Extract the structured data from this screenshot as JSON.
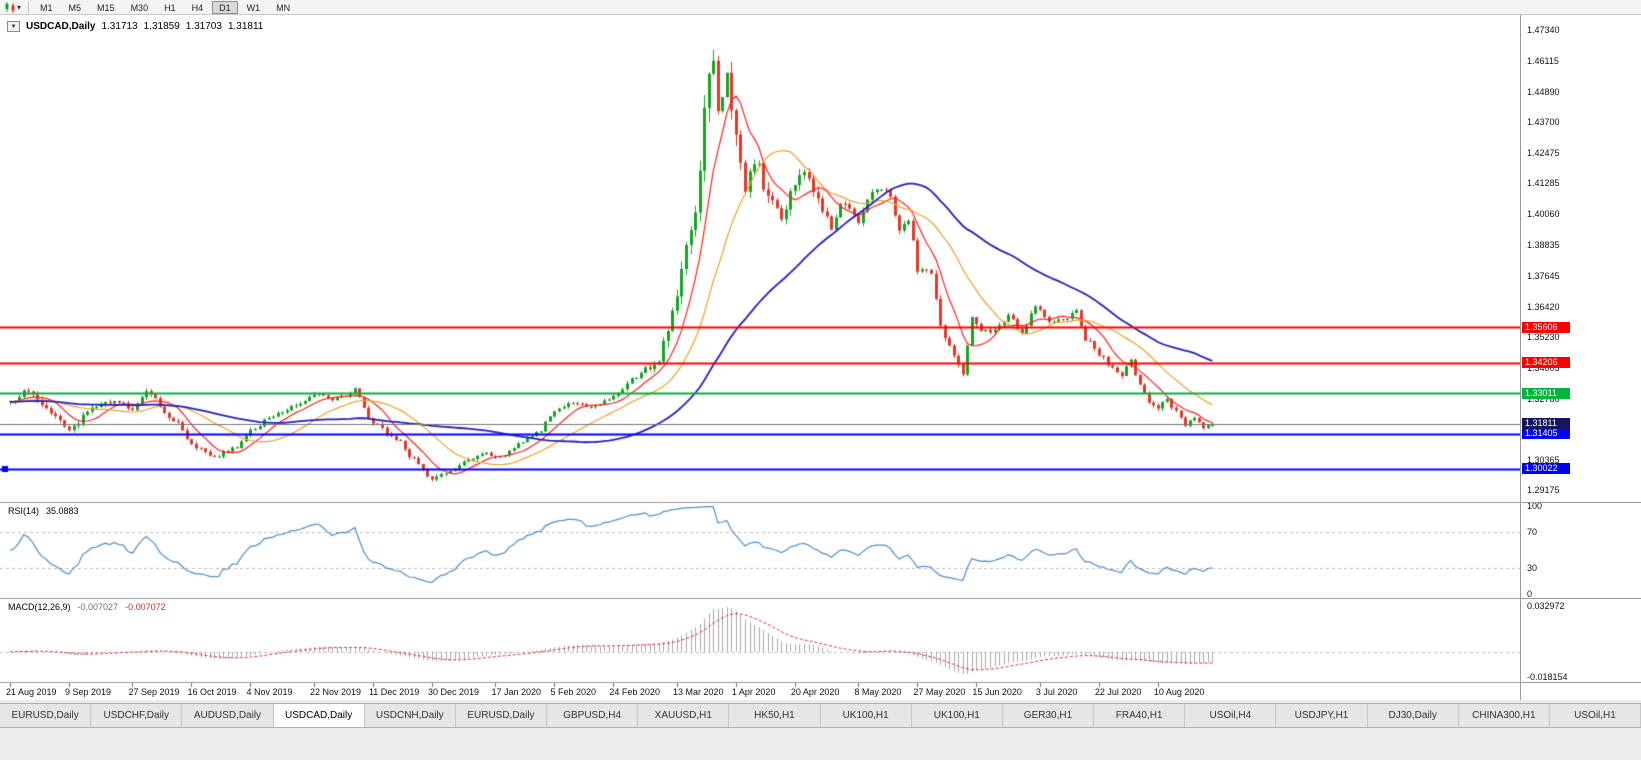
{
  "toolbar": {
    "timeframes": [
      "M1",
      "M5",
      "M15",
      "M30",
      "H1",
      "H4",
      "D1",
      "W1",
      "MN"
    ],
    "active_timeframe": "D1",
    "dropdown_icon": "▾"
  },
  "header": {
    "dropdown_icon": "▼",
    "title": "USDCAD,Daily",
    "open": "1.31713",
    "high": "1.31859",
    "low": "1.31703",
    "close": "1.31811"
  },
  "price_axis": {
    "labels": [
      "1.47340",
      "1.46115",
      "1.44890",
      "1.43700",
      "1.42475",
      "1.41285",
      "1.40060",
      "1.38835",
      "1.37645",
      "1.36420",
      "1.35230",
      "1.34005",
      "1.32780",
      "1.31590",
      "1.30365",
      "1.29175"
    ]
  },
  "time_axis": {
    "labels": [
      {
        "index": 0,
        "text": "21 Aug 2019"
      },
      {
        "index": 13,
        "text": "9 Sep 2019"
      },
      {
        "index": 27,
        "text": "27 Sep 2019"
      },
      {
        "index": 40,
        "text": "16 Oct 2019"
      },
      {
        "index": 53,
        "text": "4 Nov 2019"
      },
      {
        "index": 67,
        "text": "22 Nov 2019"
      },
      {
        "index": 80,
        "text": "11 Dec 2019"
      },
      {
        "index": 93,
        "text": "30 Dec 2019"
      },
      {
        "index": 107,
        "text": "17 Jan 2020"
      },
      {
        "index": 120,
        "text": "5 Feb 2020"
      },
      {
        "index": 133,
        "text": "24 Feb 2020"
      },
      {
        "index": 147,
        "text": "13 Mar 2020"
      },
      {
        "index": 160,
        "text": "1 Apr 2020"
      },
      {
        "index": 173,
        "text": "20 Apr 2020"
      },
      {
        "index": 187,
        "text": "8 May 2020"
      },
      {
        "index": 200,
        "text": "27 May 2020"
      },
      {
        "index": 213,
        "text": "15 Jun 2020"
      },
      {
        "index": 227,
        "text": "3 Jul 2020"
      },
      {
        "index": 240,
        "text": "22 Jul 2020"
      },
      {
        "index": 253,
        "text": "10 Aug 2020"
      }
    ]
  },
  "levels": [
    {
      "text": "1.35606",
      "value": 1.35606,
      "color": "#ff0000"
    },
    {
      "text": "1.34206",
      "value": 1.34206,
      "color": "#ff0000"
    },
    {
      "text": "1.33011",
      "value": 1.33011,
      "color": "#00b43c"
    },
    {
      "text": "1.31405",
      "value": 1.31405,
      "color": "#0000ff"
    },
    {
      "text": "1.30022",
      "value": 1.30022,
      "color": "#0000ff"
    }
  ],
  "current_price": {
    "text": "1.31811",
    "value": 1.31811,
    "badge_bg": "#16165e"
  },
  "rsi_panel": {
    "name": "RSI(14)",
    "value": "35.0883",
    "axis": [
      {
        "text": "100",
        "value": 100
      },
      {
        "text": "70",
        "value": 70
      },
      {
        "text": "30",
        "value": 30
      },
      {
        "text": "0",
        "value": 0
      }
    ]
  },
  "macd_panel": {
    "name": "MACD(12,26,9)",
    "value1": "-0.007027",
    "value2": "-0.007072",
    "axis": [
      {
        "text": "0.032972",
        "value": 0.032972
      },
      {
        "text": "-0.018154",
        "value": -0.018154
      }
    ]
  },
  "tabs": {
    "active_index": 3,
    "items": [
      "EURUSD,Daily",
      "USDCHF,Daily",
      "AUDUSD,Daily",
      "USDCAD,Daily",
      "USDCNH,Daily",
      "EURUSD,Daily",
      "GBPUSD,H4",
      "XAUUSD,H1",
      "HK50,H1",
      "UK100,H1",
      "UK100,H1",
      "GER30,H1",
      "FRA40,H1",
      "USOil,H4",
      "USDJPY,H1",
      "DJ30,Daily",
      "CHINA300,H1",
      "USOil,H1"
    ]
  },
  "colors": {
    "up": "#18a326",
    "down": "#e0392b",
    "ma_fast": "#ff2222",
    "ma_mid": "#f0a028",
    "ma_slow": "#2222c0",
    "rsi": "#4a90d2",
    "macd_hist": "#a8a8a8",
    "macd_signal": "#dd3333",
    "level_red": "#ff0000",
    "level_green": "#00b43c",
    "level_blue": "#0000ff"
  },
  "chart_data": {
    "type": "candlestick",
    "symbol": "USDCAD",
    "timeframe": "Daily",
    "title": "USDCAD,Daily",
    "candle_count": 266,
    "last_candle": {
      "open": 1.31713,
      "high": 1.31859,
      "low": 1.31703,
      "close": 1.31811
    },
    "price_range": {
      "max": 1.478,
      "min": 1.288
    },
    "macd_range": {
      "max": 0.032972,
      "min": -0.018154
    },
    "rsi_levels": [
      70,
      30
    ],
    "indicators": {
      "rsi": {
        "period": 14,
        "current": 35.0883
      },
      "macd": {
        "fast": 12,
        "slow": 26,
        "signal_period": 9,
        "current_macd": -0.007027,
        "current_signal": -0.007072
      },
      "moving_averages": [
        {
          "period": 8
        },
        {
          "period": 20
        },
        {
          "period": 50
        }
      ]
    },
    "horizontal_lines": [
      {
        "value": 1.35606,
        "color": "#ff0000"
      },
      {
        "value": 1.34206,
        "color": "#ff0000"
      },
      {
        "value": 1.33011,
        "color": "#00b43c"
      },
      {
        "value": 1.31405,
        "color": "#0000ff"
      },
      {
        "value": 1.30022,
        "color": "#0000ff",
        "handles": true
      }
    ],
    "price_path": [
      [
        0,
        1.3265,
        0.0026
      ],
      [
        4,
        1.3308,
        0.0026
      ],
      [
        9,
        1.3228,
        0.0024
      ],
      [
        13,
        1.316,
        0.0022
      ],
      [
        18,
        1.3242,
        0.0022
      ],
      [
        23,
        1.327,
        0.002
      ],
      [
        27,
        1.3242,
        0.002
      ],
      [
        30,
        1.3302,
        0.0022
      ],
      [
        36,
        1.3195,
        0.0022
      ],
      [
        41,
        1.309,
        0.002
      ],
      [
        45,
        1.3052,
        0.0018
      ],
      [
        49,
        1.308,
        0.0018
      ],
      [
        53,
        1.3152,
        0.0018
      ],
      [
        58,
        1.3212,
        0.0018
      ],
      [
        63,
        1.3258,
        0.0018
      ],
      [
        68,
        1.3296,
        0.0018
      ],
      [
        72,
        1.3278,
        0.0018
      ],
      [
        76,
        1.3312,
        0.002
      ],
      [
        80,
        1.319,
        0.0022
      ],
      [
        85,
        1.312,
        0.002
      ],
      [
        89,
        1.3042,
        0.0018
      ],
      [
        93,
        1.2962,
        0.0018
      ],
      [
        97,
        1.2992,
        0.0016
      ],
      [
        101,
        1.3044,
        0.0016
      ],
      [
        105,
        1.3062,
        0.0015
      ],
      [
        108,
        1.3046,
        0.0015
      ],
      [
        112,
        1.3098,
        0.0015
      ],
      [
        116,
        1.3142,
        0.0016
      ],
      [
        120,
        1.323,
        0.0017
      ],
      [
        124,
        1.3262,
        0.0017
      ],
      [
        128,
        1.3247,
        0.0017
      ],
      [
        133,
        1.3284,
        0.002
      ],
      [
        137,
        1.3352,
        0.0024
      ],
      [
        140,
        1.34,
        0.0026
      ],
      [
        143,
        1.3424,
        0.0032
      ],
      [
        145,
        1.3562,
        0.005
      ],
      [
        147,
        1.3705,
        0.0065
      ],
      [
        149,
        1.3872,
        0.0075
      ],
      [
        151,
        1.3998,
        0.0085
      ],
      [
        153,
        1.4425,
        0.0105
      ],
      [
        155,
        1.4605,
        0.011
      ],
      [
        156,
        1.4432,
        0.01
      ],
      [
        158,
        1.4532,
        0.0092
      ],
      [
        160,
        1.4302,
        0.0085
      ],
      [
        162,
        1.4092,
        0.0076
      ],
      [
        164,
        1.4212,
        0.0066
      ],
      [
        167,
        1.4092,
        0.0056
      ],
      [
        170,
        1.3982,
        0.005
      ],
      [
        172,
        1.4092,
        0.0048
      ],
      [
        175,
        1.4182,
        0.0046
      ],
      [
        178,
        1.4062,
        0.0042
      ],
      [
        181,
        1.3956,
        0.004
      ],
      [
        184,
        1.4062,
        0.0038
      ],
      [
        187,
        1.3986,
        0.0036
      ],
      [
        190,
        1.4082,
        0.0034
      ],
      [
        193,
        1.4112,
        0.0032
      ],
      [
        196,
        1.3946,
        0.0032
      ],
      [
        198,
        1.3992,
        0.003
      ],
      [
        200,
        1.3792,
        0.003
      ],
      [
        203,
        1.3776,
        0.0028
      ],
      [
        205,
        1.3566,
        0.003
      ],
      [
        207,
        1.3492,
        0.0028
      ],
      [
        209,
        1.3422,
        0.0026
      ],
      [
        210,
        1.3372,
        0.0026
      ],
      [
        212,
        1.3612,
        0.003
      ],
      [
        214,
        1.3556,
        0.0026
      ],
      [
        217,
        1.3546,
        0.0024
      ],
      [
        220,
        1.3606,
        0.0022
      ],
      [
        223,
        1.3542,
        0.0022
      ],
      [
        226,
        1.3652,
        0.0022
      ],
      [
        229,
        1.3576,
        0.002
      ],
      [
        232,
        1.3596,
        0.002
      ],
      [
        235,
        1.3622,
        0.002
      ],
      [
        237,
        1.3516,
        0.002
      ],
      [
        240,
        1.3456,
        0.002
      ],
      [
        242,
        1.3416,
        0.002
      ],
      [
        245,
        1.3372,
        0.002
      ],
      [
        247,
        1.3426,
        0.002
      ],
      [
        249,
        1.3332,
        0.002
      ],
      [
        251,
        1.3272,
        0.002
      ],
      [
        253,
        1.3246,
        0.0018
      ],
      [
        255,
        1.3272,
        0.0018
      ],
      [
        257,
        1.3226,
        0.0018
      ],
      [
        259,
        1.3172,
        0.0018
      ],
      [
        261,
        1.3206,
        0.0016
      ],
      [
        263,
        1.3166,
        0.0016
      ],
      [
        265,
        1.3181,
        0.0014
      ]
    ]
  }
}
